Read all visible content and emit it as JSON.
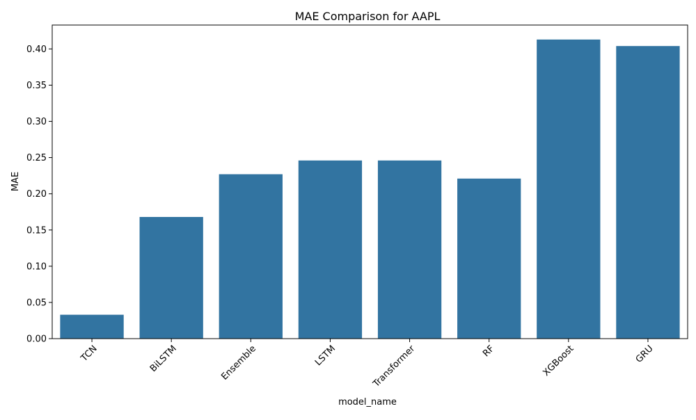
{
  "chart_data": {
    "type": "bar",
    "title": "MAE Comparison for AAPL",
    "xlabel": "model_name",
    "ylabel": "MAE",
    "categories": [
      "TCN",
      "BiLSTM",
      "Ensemble",
      "LSTM",
      "Transformer",
      "RF",
      "XGBoost",
      "GRU"
    ],
    "values": [
      0.033,
      0.168,
      0.227,
      0.246,
      0.246,
      0.221,
      0.413,
      0.404
    ],
    "ylim": [
      0,
      0.433
    ],
    "yticks": [
      0.0,
      0.05,
      0.1,
      0.15,
      0.2,
      0.25,
      0.3,
      0.35,
      0.4
    ],
    "ytick_labels": [
      "0.00",
      "0.05",
      "0.10",
      "0.15",
      "0.20",
      "0.25",
      "0.30",
      "0.35",
      "0.40"
    ],
    "xtick_rotation": 45,
    "grid": false,
    "bar_color": "#3274a1"
  }
}
